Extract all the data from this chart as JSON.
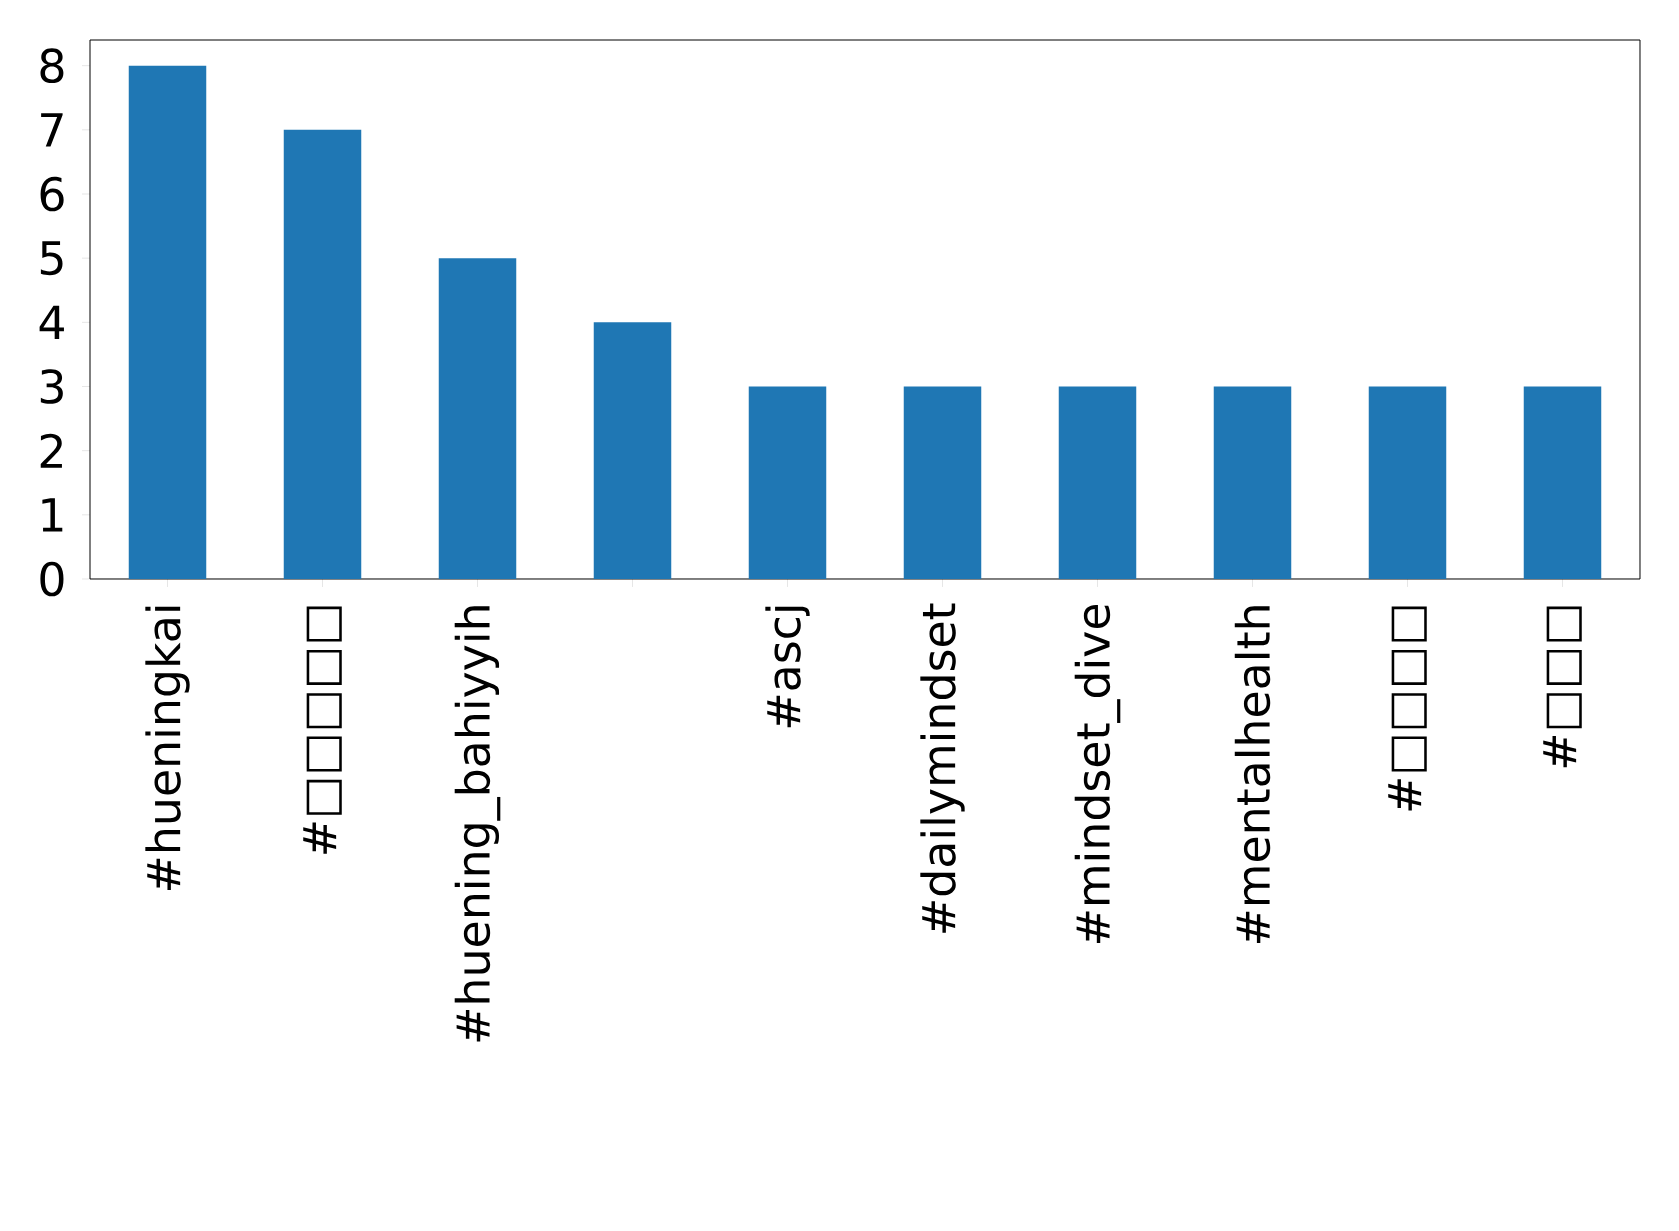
{
  "chart_data": {
    "type": "bar",
    "categories": [
      "#hueningkai",
      "#□□□□□",
      "#huening_bahiyyih",
      null,
      "#ascj",
      "#dailymindset",
      "#mindset_dive",
      "#mentalhealth",
      "#□□□□",
      "#□□□"
    ],
    "values": [
      8,
      7,
      5,
      4,
      3,
      3,
      3,
      3,
      3,
      3
    ],
    "color": "#1f77b4",
    "ylim": [
      0,
      8.4
    ],
    "yticks": [
      0,
      1,
      2,
      3,
      4,
      5,
      6,
      7,
      8
    ]
  }
}
